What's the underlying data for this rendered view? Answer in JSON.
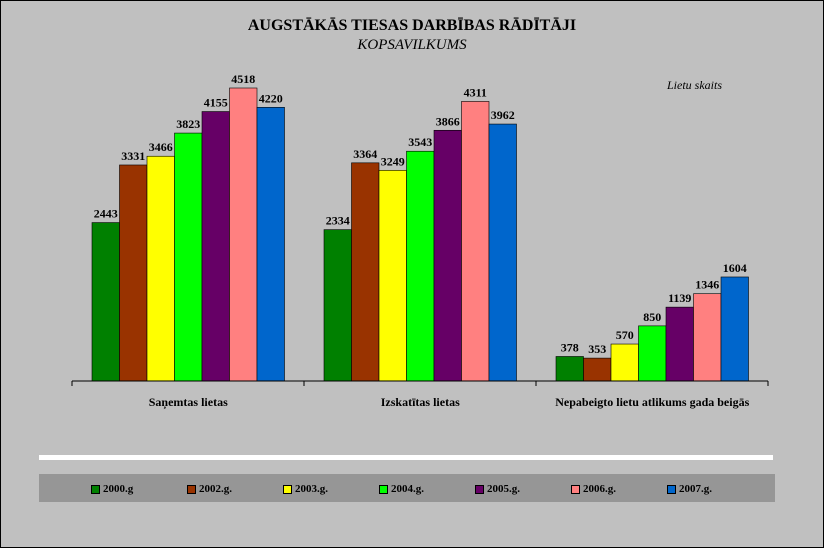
{
  "chart_data": {
    "type": "bar",
    "title": "AUGSTĀKĀS TIESAS DARBĪBAS RĀDĪTĀJI",
    "subtitle": "KOPSAVILKUMS",
    "unit_note": "Lietu skaits",
    "categories": [
      "Saņemtas lietas",
      "Izskatītas lietas",
      "Nepabeigto lietu atlikums gada beigās"
    ],
    "series": [
      {
        "name": "2000.g",
        "color": "#008000",
        "values": [
          2443,
          2334,
          378
        ]
      },
      {
        "name": "2002.g.",
        "color": "#993300",
        "values": [
          3331,
          3364,
          353
        ]
      },
      {
        "name": "2003.g.",
        "color": "#ffff00",
        "values": [
          3466,
          3249,
          570
        ]
      },
      {
        "name": "2004.g.",
        "color": "#00ff00",
        "values": [
          3823,
          3543,
          850
        ]
      },
      {
        "name": "2005.g.",
        "color": "#660066",
        "values": [
          4155,
          3866,
          1139
        ]
      },
      {
        "name": "2006.g.",
        "color": "#ff8080",
        "values": [
          4518,
          4311,
          1346
        ]
      },
      {
        "name": "2007.g.",
        "color": "#0066cc",
        "values": [
          4220,
          3962,
          1604
        ]
      }
    ],
    "ylim": [
      0,
      4800
    ],
    "grid": false,
    "legend_position": "bottom"
  }
}
